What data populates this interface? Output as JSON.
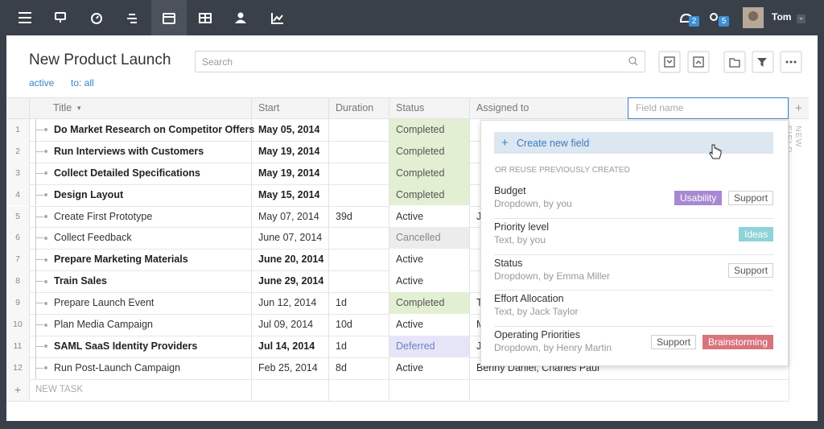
{
  "nav": {
    "badges": [
      2,
      5
    ],
    "user": "Tom"
  },
  "header": {
    "title": "New Product Launch",
    "search_placeholder": "Search",
    "filters": [
      "active",
      "to: all"
    ]
  },
  "table": {
    "columns": [
      "Title",
      "Start",
      "Duration",
      "Status",
      "Assigned to"
    ],
    "field_placeholder": "Field name",
    "new_field": "NEW FIELD",
    "new_task": "NEW TASK",
    "rows": [
      {
        "number": 1,
        "cells": [
          "Do Market Research on Competitor Offers",
          "May 05, 2014",
          null,
          "Completed",
          null
        ],
        "bold": true,
        "status_bg": "#e3efd3",
        "status_fg": "#555555"
      },
      {
        "number": 2,
        "cells": [
          "Run Interviews with Customers",
          "May 19, 2014",
          null,
          "Completed",
          null
        ],
        "bold": true,
        "status_bg": "#e3efd3",
        "status_fg": "#555555"
      },
      {
        "number": 3,
        "cells": [
          "Collect Detailed Specifications",
          "May 19, 2014",
          null,
          "Completed",
          null
        ],
        "bold": true,
        "status_bg": "#e3efd3",
        "status_fg": "#555555"
      },
      {
        "number": 4,
        "cells": [
          "Design Layout",
          "May 15, 2014",
          null,
          "Completed",
          null
        ],
        "bold": true,
        "status_bg": "#e3efd3",
        "status_fg": "#555555"
      },
      {
        "number": 5,
        "cells": [
          "Create First Prototype",
          "May 07, 2014",
          "39d",
          "Active",
          "J"
        ],
        "bold": false,
        "status_bg": "#ffffff",
        "status_fg": "#333333"
      },
      {
        "number": 6,
        "cells": [
          "Collect Feedback",
          "June 07, 2014",
          null,
          "Cancelled",
          null
        ],
        "bold": false,
        "status_bg": "#ececec",
        "status_fg": "#888888"
      },
      {
        "number": 7,
        "cells": [
          "Prepare Marketing Materials",
          "June 20, 2014",
          null,
          "Active",
          null
        ],
        "bold": true,
        "status_bg": "#ffffff",
        "status_fg": "#333333"
      },
      {
        "number": 8,
        "cells": [
          "Train Sales",
          "June 29, 2014",
          null,
          "Active",
          null
        ],
        "bold": true,
        "status_bg": "#ffffff",
        "status_fg": "#333333"
      },
      {
        "number": 9,
        "cells": [
          "Prepare Launch Event",
          "Jun 12, 2014",
          "1d",
          "Completed",
          "T"
        ],
        "bold": false,
        "status_bg": "#e3efd3",
        "status_fg": "#555555"
      },
      {
        "number": 10,
        "cells": [
          "Plan Media Campaign",
          "Jul 09, 2014",
          "10d",
          "Active",
          "M"
        ],
        "bold": false,
        "status_bg": "#ffffff",
        "status_fg": "#333333"
      },
      {
        "number": 11,
        "cells": [
          "SAML SaaS Identity Providers",
          "Jul 14, 2014",
          "1d",
          "Deferred",
          "J"
        ],
        "bold": true,
        "status_bg": "#e6e5f8",
        "status_fg": "#6e7fc6"
      },
      {
        "number": 12,
        "cells": [
          "Run Post-Launch Campaign",
          "Feb 25, 2014",
          "8d",
          "Active",
          "Benny Daniel, Charles Paul"
        ],
        "bold": false,
        "status_bg": "#ffffff",
        "status_fg": "#333333"
      }
    ]
  },
  "popup": {
    "create": "Create new field",
    "section": "OR REUSE PREVIOUSLY CREATED",
    "fields": [
      {
        "name": "Budget",
        "meta": "Dropdown, by you",
        "tags": [
          {
            "label": "Usability",
            "color": "#a888d2"
          },
          {
            "label": "Support"
          }
        ]
      },
      {
        "name": "Priority level",
        "meta": "Text, by you",
        "tags": [
          {
            "label": "Ideas",
            "color": "#8fd3d8"
          }
        ]
      },
      {
        "name": "Status",
        "meta": "Dropdown, by Emma Miller",
        "tags": [
          {
            "label": "Support"
          }
        ]
      },
      {
        "name": "Effort Allocation",
        "meta": "Text, by Jack Taylor",
        "tags": []
      },
      {
        "name": "Operating Priorities",
        "meta": "Dropdown, by Henry Martin",
        "tags": [
          {
            "label": "Support"
          },
          {
            "label": "Brainstorming",
            "color": "#d9737c"
          }
        ]
      }
    ]
  }
}
